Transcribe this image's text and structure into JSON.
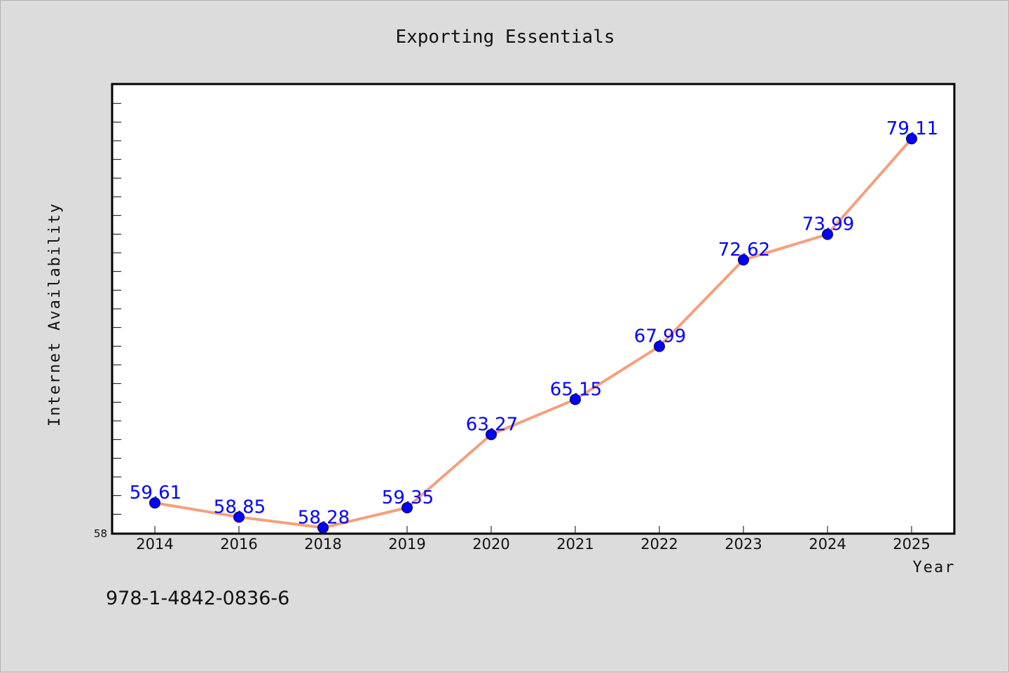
{
  "chart_data": {
    "type": "line",
    "title": "Exporting Essentials",
    "xlabel": "Year",
    "ylabel": "Internet Availability",
    "categories": [
      "2014",
      "2016",
      "2018",
      "2019",
      "2020",
      "2021",
      "2022",
      "2023",
      "2024",
      "2025"
    ],
    "values": [
      59.61,
      58.85,
      58.28,
      59.35,
      63.27,
      65.15,
      67.99,
      72.62,
      73.99,
      79.11
    ],
    "data_labels": [
      "59.61",
      "58.85",
      "58.28",
      "59.35",
      "63.27",
      "65.15",
      "67.99",
      "72.62",
      "73.99",
      "79.11"
    ],
    "ylim": [
      58,
      82
    ],
    "ytick_labels": [
      "58"
    ],
    "grid": false,
    "line_color": "#f4a07c",
    "marker_color": "#0000ff",
    "label_color": "#0000ff"
  },
  "footer": {
    "isbn": "978-1-4842-0836-6"
  }
}
